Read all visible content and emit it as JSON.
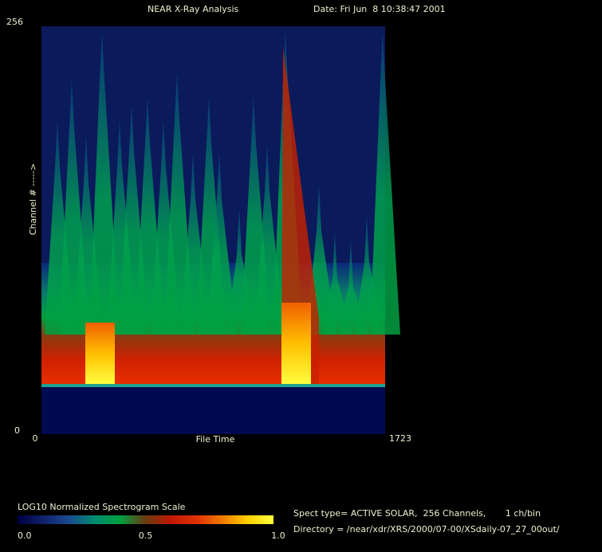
{
  "chart_data": {
    "type": "heatmap",
    "title": "NEAR X-Ray Analysis",
    "subtitle": "Date: Fri Jun  8 10:38:47 2001",
    "x_label": "File Time",
    "y_label": "Channel # ----->",
    "xlim": [
      0,
      1723
    ],
    "xticks": [
      0,
      1723
    ],
    "ylim": [
      0,
      256
    ],
    "yticks": [
      0,
      256
    ],
    "colorbar": {
      "title": "LOG10 Normalized Spectrogram Scale",
      "lim": [
        0,
        1
      ],
      "ticks": [
        {
          "value": 0,
          "label": "0.0"
        },
        0.5,
        {
          "value": 1,
          "label": "1.0"
        }
      ],
      "colors": [
        "#000040",
        "#10206a",
        "#1a4a90",
        "#008a70",
        "#00a040",
        "#6a3a10",
        "#c01800",
        "#e03000",
        "#f07a00",
        "#ffd000",
        "#ffff40"
      ]
    },
    "info": [
      "Spect type= ACTIVE SOLAR,  256 Channels,       1 ch/bin",
      "Directory = /near/xdr/XRS/2000/07-00/XSdaily-07_27_00out/"
    ]
  }
}
